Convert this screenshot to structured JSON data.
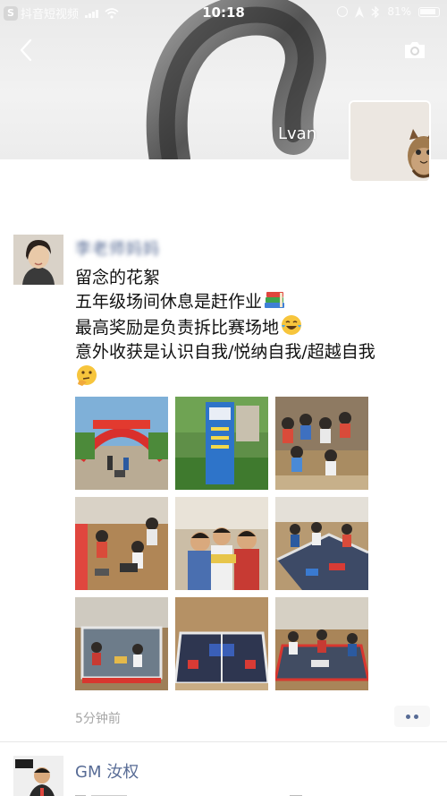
{
  "status_bar": {
    "carrier": "抖音短视频",
    "time": "10:18",
    "battery": "81%"
  },
  "cover": {
    "nickname": "Lvan"
  },
  "post": {
    "author": "李老师妈妈",
    "lines": [
      "留念的花絮",
      "五年级场间休息是赶作业",
      "最高奖励是负责拆比赛场地",
      "意外收获是认识自我/悦纳自我/超越自我"
    ],
    "emojis": [
      "books-emoji",
      "tears-of-joy-emoji",
      "thinking-face-emoji"
    ],
    "photo_count": 9,
    "time": "5分钟前"
  },
  "next_post": {
    "author": "GM 汝权"
  },
  "colors": {
    "name_link": "#576b95",
    "timestamp": "#a6a6a6",
    "text": "#111111"
  }
}
